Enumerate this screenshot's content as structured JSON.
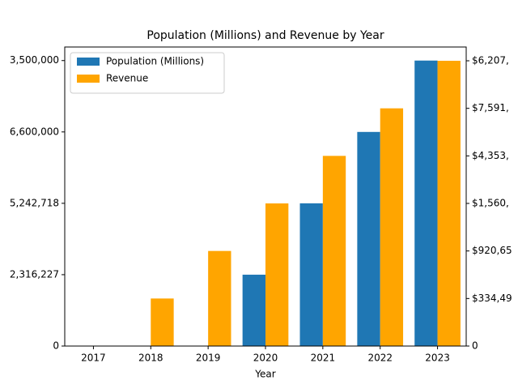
{
  "chart_data": {
    "type": "bar",
    "title": "Population (Millions) and Revenue by Year",
    "x_label": "Year",
    "categories": [
      "2017",
      "2018",
      "2019",
      "2020",
      "2021",
      "2022",
      "2023"
    ],
    "series": [
      {
        "name": "Population (Millions)",
        "color": "#1f77b4",
        "values": [
          0,
          0,
          0,
          1,
          2,
          3,
          4
        ]
      },
      {
        "name": "Revenue",
        "color": "#ffa500",
        "axis": "y2",
        "values": [
          0,
          1,
          2,
          3,
          4,
          5,
          6
        ]
      }
    ],
    "ylim": [
      0,
      4.19
    ],
    "yticks": [
      0,
      {
        "value": 1,
        "label": "2,316,227"
      },
      {
        "value": 2,
        "label": "5,242,718"
      },
      {
        "value": 3,
        "label": "6,600,000"
      },
      {
        "value": 4,
        "label": "3,500,000"
      }
    ],
    "y2lim": [
      0,
      6.29
    ],
    "y2ticks": [
      0,
      {
        "value": 1,
        "label": "$334,49"
      },
      {
        "value": 2,
        "label": "$920,65"
      },
      {
        "value": 3,
        "label": "$1,560,"
      },
      {
        "value": 4,
        "label": "$4,353,"
      },
      {
        "value": 5,
        "label": "$7,591,"
      },
      {
        "value": 6,
        "label": "$6,207,"
      }
    ],
    "legend": "upper left"
  }
}
